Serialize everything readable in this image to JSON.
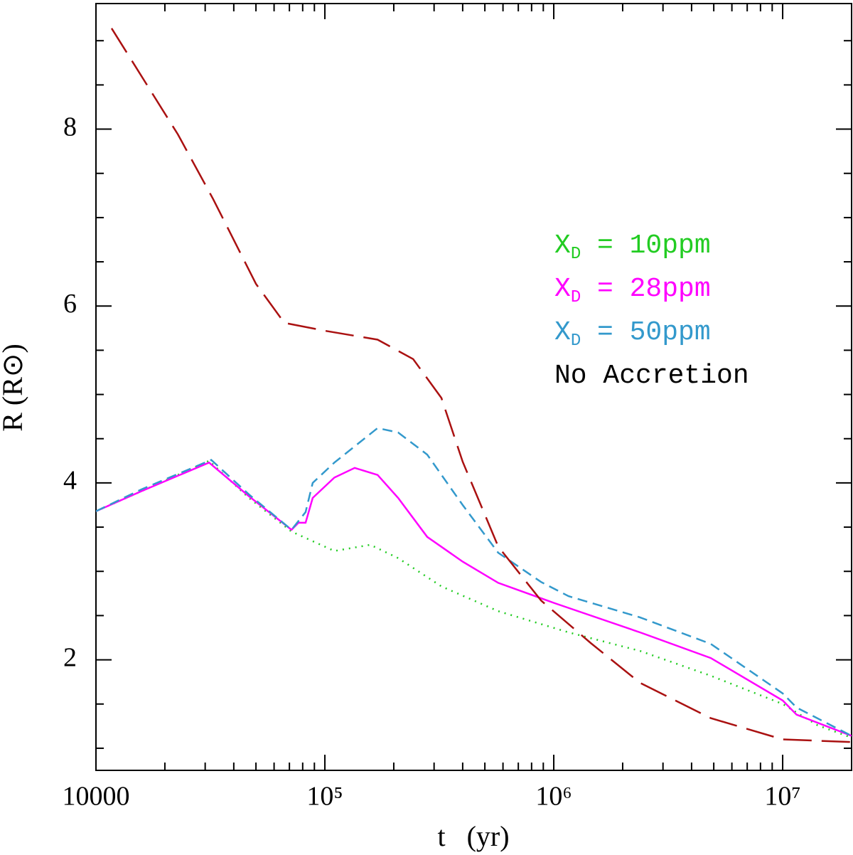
{
  "chart_data": {
    "type": "line",
    "xlabel": "t   (yr)",
    "ylabel": "R (R⊙)",
    "xscale": "log",
    "xlim": [
      10000,
      20000000
    ],
    "ylim": [
      0.75,
      9.42
    ],
    "xticks": [
      10000,
      {
        "value": 100000,
        "label": "10⁵"
      },
      {
        "value": 1000000,
        "label": "10⁶"
      },
      {
        "value": 10000000,
        "label": "10⁷"
      }
    ],
    "xminor": [
      20000,
      30000,
      40000,
      50000,
      60000,
      70000,
      80000,
      90000,
      200000,
      300000,
      400000,
      500000,
      600000,
      700000,
      800000,
      900000,
      2000000,
      3000000,
      4000000,
      5000000,
      6000000,
      7000000,
      8000000,
      9000000
    ],
    "yticks": [
      2,
      4,
      6,
      8
    ],
    "yminor": [
      1,
      1.5,
      2.5,
      3,
      3.5,
      4.5,
      5,
      5.5,
      6.5,
      7,
      7.5,
      8.5,
      9
    ],
    "legend": "right",
    "series": [
      {
        "name": "XD = 10ppm",
        "color": "#22cc22",
        "style": "dotted",
        "x": [
          10000,
          15900,
          31200,
          46600,
          71500,
          110000,
          158000,
          209000,
          323000,
          572000,
          1160000,
          2380000,
          4850000,
          10000000,
          14200000,
          20000000
        ],
        "values": [
          3.68,
          3.91,
          4.25,
          3.83,
          3.45,
          3.23,
          3.3,
          3.15,
          2.83,
          2.55,
          2.31,
          2.1,
          1.82,
          1.5,
          1.26,
          1.12
        ]
      },
      {
        "name": "XD = 28ppm",
        "color": "#ff00ff",
        "style": "solid",
        "x": [
          10000,
          15900,
          31200,
          46600,
          71500,
          76700,
          82400,
          88500,
          110000,
          135000,
          170000,
          209000,
          280000,
          400000,
          572000,
          1010000,
          2380000,
          4850000,
          10000000,
          11500000,
          20000000
        ],
        "values": [
          3.68,
          3.91,
          4.23,
          3.85,
          3.47,
          3.55,
          3.55,
          3.83,
          4.06,
          4.17,
          4.09,
          3.83,
          3.39,
          3.11,
          2.87,
          2.64,
          2.31,
          2.02,
          1.54,
          1.38,
          1.14
        ]
      },
      {
        "name": "XD = 50ppm",
        "color": "#3399cc",
        "style": "dashed",
        "x": [
          10000,
          15900,
          31900,
          46600,
          71500,
          82400,
          88500,
          110000,
          170000,
          209000,
          280000,
          400000,
          572000,
          880000,
          1160000,
          2380000,
          4850000,
          10000000,
          11500000,
          20000000
        ],
        "values": [
          3.68,
          3.93,
          4.26,
          3.87,
          3.47,
          3.67,
          4.0,
          4.23,
          4.62,
          4.57,
          4.32,
          3.75,
          3.21,
          2.88,
          2.72,
          2.48,
          2.18,
          1.62,
          1.46,
          1.14
        ]
      },
      {
        "name": "No Accretion",
        "color": "#aa1111",
        "style": "longdash",
        "x": [
          11700,
          22800,
          32500,
          50000,
          66500,
          100000,
          170000,
          243000,
          323000,
          400000,
          572000,
          880000,
          1450000,
          2380000,
          4850000,
          10000000,
          20000000
        ],
        "values": [
          9.14,
          7.94,
          7.21,
          6.25,
          5.81,
          5.72,
          5.62,
          5.4,
          4.96,
          4.24,
          3.28,
          2.67,
          2.19,
          1.74,
          1.34,
          1.1,
          1.07
        ]
      }
    ]
  }
}
